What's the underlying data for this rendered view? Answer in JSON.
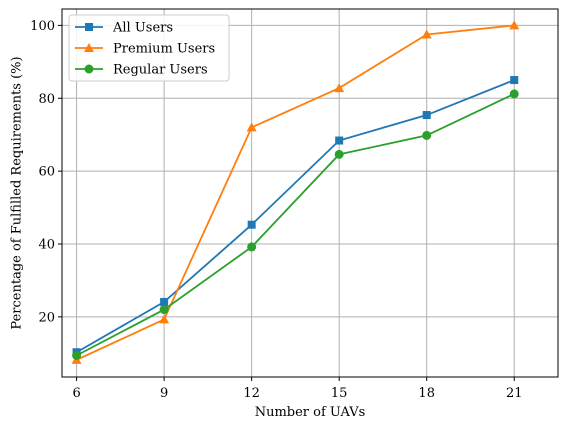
{
  "chart_data": {
    "type": "line",
    "title": "",
    "xlabel": "Number of UAVs",
    "ylabel": "Percentage of Fulfilled Requirements (%)",
    "x": [
      6,
      9,
      12,
      15,
      18,
      21
    ],
    "xlim": [
      5.5,
      22.5
    ],
    "ylim": [
      3.5,
      104.5
    ],
    "xticks": [
      6,
      9,
      12,
      15,
      18,
      21
    ],
    "yticks": [
      20,
      40,
      60,
      80,
      100
    ],
    "grid": true,
    "legend_position": "top-left",
    "series": [
      {
        "name": "All Users",
        "color": "#1f77b4",
        "marker": "square",
        "values": [
          10.3,
          24.1,
          45.3,
          68.4,
          75.4,
          85.0
        ]
      },
      {
        "name": "Premium Users",
        "color": "#ff7f0e",
        "marker": "triangle",
        "values": [
          8.2,
          19.3,
          72.0,
          82.8,
          97.5,
          100.0
        ]
      },
      {
        "name": "Regular Users",
        "color": "#2ca02c",
        "marker": "circle",
        "values": [
          9.4,
          22.0,
          39.2,
          64.6,
          69.8,
          81.2
        ]
      }
    ]
  }
}
